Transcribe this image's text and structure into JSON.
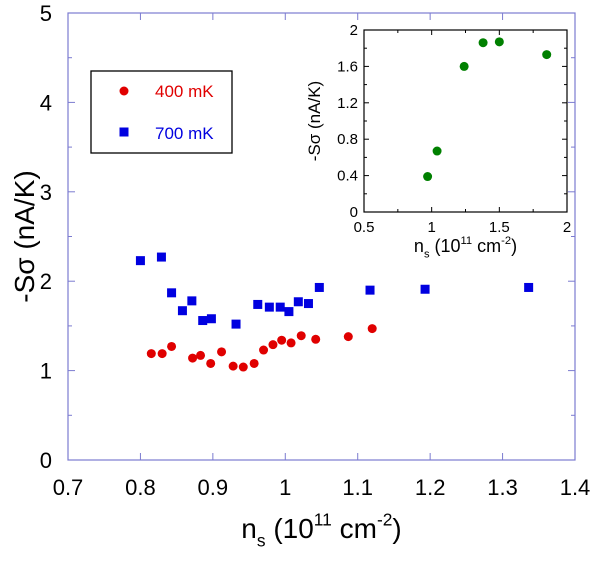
{
  "chart_data": [
    {
      "type": "scatter",
      "xlabel": {
        "main": "n",
        "sub": "s",
        "unit_pre": " (10",
        "sup1": "11",
        "unit_mid": " cm",
        "sup2": "-2",
        "unit_post": ")"
      },
      "ylabel": "-Sσ (nA/K)",
      "xlim": [
        0.7,
        1.4
      ],
      "ylim": [
        0,
        5
      ],
      "xticks": [
        "0.7",
        "0.8",
        "0.9",
        "1",
        "1.1",
        "1.2",
        "1.3",
        "1.4"
      ],
      "yticks": [
        "0",
        "1",
        "2",
        "3",
        "4",
        "5"
      ],
      "legend_position": "upper-left",
      "series": [
        {
          "name": "400 mK",
          "color": "#e00000",
          "marker": "circle",
          "points": [
            [
              0.815,
              1.19
            ],
            [
              0.83,
              1.19
            ],
            [
              0.843,
              1.27
            ],
            [
              0.872,
              1.14
            ],
            [
              0.883,
              1.17
            ],
            [
              0.897,
              1.08
            ],
            [
              0.912,
              1.21
            ],
            [
              0.928,
              1.05
            ],
            [
              0.942,
              1.04
            ],
            [
              0.957,
              1.08
            ],
            [
              0.97,
              1.23
            ],
            [
              0.983,
              1.29
            ],
            [
              0.995,
              1.34
            ],
            [
              1.008,
              1.31
            ],
            [
              1.022,
              1.39
            ],
            [
              1.042,
              1.35
            ],
            [
              1.087,
              1.38
            ],
            [
              1.12,
              1.47
            ]
          ]
        },
        {
          "name": "700 mK",
          "color": "#0000e0",
          "marker": "square",
          "points": [
            [
              0.8,
              2.23
            ],
            [
              0.829,
              2.27
            ],
            [
              0.843,
              1.87
            ],
            [
              0.858,
              1.67
            ],
            [
              0.871,
              1.78
            ],
            [
              0.886,
              1.56
            ],
            [
              0.898,
              1.58
            ],
            [
              0.932,
              1.52
            ],
            [
              0.962,
              1.74
            ],
            [
              0.978,
              1.71
            ],
            [
              0.993,
              1.71
            ],
            [
              1.005,
              1.66
            ],
            [
              1.018,
              1.77
            ],
            [
              1.032,
              1.75
            ],
            [
              1.047,
              1.93
            ],
            [
              1.117,
              1.9
            ],
            [
              1.193,
              1.91
            ],
            [
              1.336,
              1.93
            ]
          ]
        }
      ]
    },
    {
      "type": "scatter",
      "inset": true,
      "xlabel": {
        "main": "n",
        "sub": "s",
        "unit_pre": " (10",
        "sup1": "11",
        "unit_mid": " cm",
        "sup2": "-2",
        "unit_post": ")"
      },
      "ylabel": "-Sσ (nA/K)",
      "xlim": [
        0.5,
        2
      ],
      "ylim": [
        0,
        2
      ],
      "xticks": [
        "0.5",
        "1",
        "1.5",
        "2"
      ],
      "yticks": [
        "0",
        "0.4",
        "0.8",
        "1.2",
        "1.6",
        "2"
      ],
      "series": [
        {
          "color": "#008000",
          "marker": "circle",
          "points": [
            [
              0.97,
              0.39
            ],
            [
              1.04,
              0.67
            ],
            [
              1.24,
              1.6
            ],
            [
              1.38,
              1.86
            ],
            [
              1.5,
              1.87
            ],
            [
              1.85,
              1.73
            ]
          ]
        }
      ]
    }
  ]
}
